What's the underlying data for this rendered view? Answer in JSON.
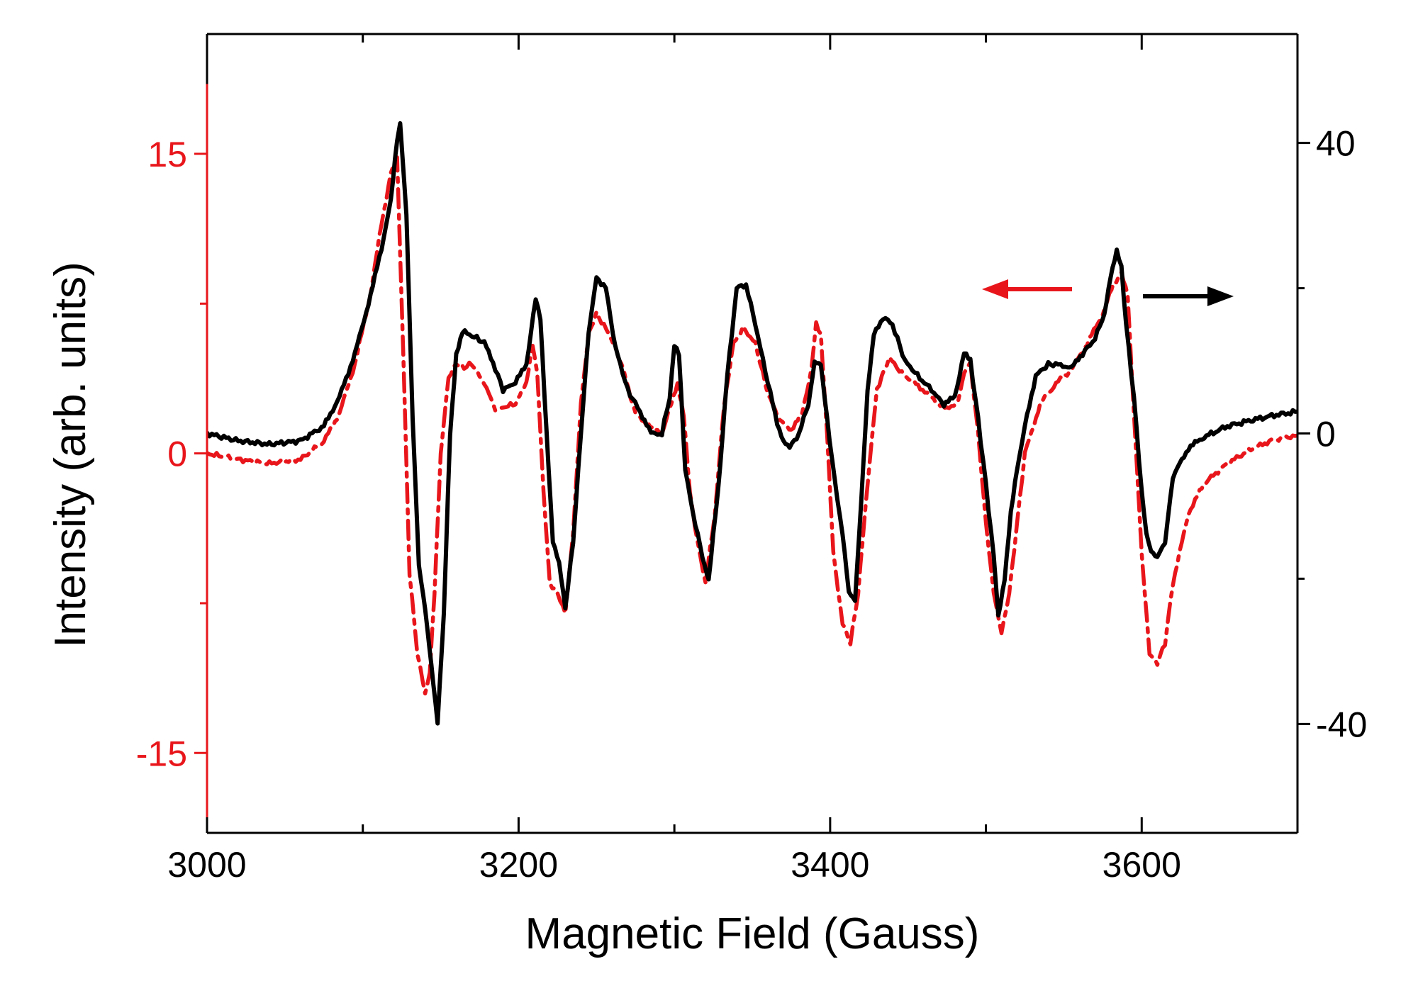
{
  "chart_data": {
    "type": "line",
    "title": "",
    "xlabel": "Magnetic Field (Gauss)",
    "ylabel": "Intensity (arb. units)",
    "xlim": [
      3000,
      3700
    ],
    "x_ticks": [
      3000,
      3200,
      3400,
      3600
    ],
    "x_minor_ticks": [
      3100,
      3300,
      3500
    ],
    "y_left": {
      "lim": [
        -19,
        21
      ],
      "ticks": [
        -15,
        0,
        15
      ],
      "minor_ticks": [
        -7.5,
        7.5
      ],
      "tick_labels": [
        "-15",
        "0",
        "15"
      ],
      "color": "#e8161b"
    },
    "y_right": {
      "lim": [
        -55,
        55
      ],
      "ticks": [
        -40,
        0,
        40
      ],
      "minor_ticks": [
        -20,
        20
      ],
      "tick_labels": [
        "-40",
        "0",
        "40"
      ],
      "color": "#000000"
    },
    "grid": false,
    "series": [
      {
        "name": "red dash-dot (left axis)",
        "axis": "left",
        "color": "#e8161b",
        "style": "dashdot",
        "x": [
          3000,
          3020,
          3040,
          3060,
          3075,
          3085,
          3095,
          3105,
          3112,
          3118,
          3122,
          3126,
          3130,
          3135,
          3140,
          3143,
          3146,
          3150,
          3155,
          3160,
          3165,
          3170,
          3178,
          3185,
          3190,
          3198,
          3205,
          3209,
          3212,
          3216,
          3220,
          3225,
          3230,
          3235,
          3240,
          3245,
          3250,
          3258,
          3266,
          3275,
          3285,
          3292,
          3298,
          3302,
          3306,
          3310,
          3315,
          3320,
          3326,
          3332,
          3338,
          3344,
          3352,
          3360,
          3368,
          3375,
          3382,
          3388,
          3391,
          3394,
          3398,
          3402,
          3408,
          3413,
          3418,
          3424,
          3430,
          3438,
          3446,
          3455,
          3465,
          3475,
          3482,
          3486,
          3490,
          3495,
          3500,
          3505,
          3510,
          3515,
          3520,
          3525,
          3535,
          3545,
          3555,
          3565,
          3575,
          3582,
          3587,
          3591,
          3595,
          3600,
          3605,
          3610,
          3615,
          3620,
          3630,
          3640,
          3655,
          3670,
          3685,
          3700
        ],
        "y": [
          0,
          -0.3,
          -0.5,
          -0.3,
          0.6,
          2.0,
          4.5,
          8.0,
          11.5,
          14.0,
          14.8,
          5.0,
          -6.0,
          -10.0,
          -12.0,
          -11.0,
          -7.0,
          0.0,
          3.8,
          4.5,
          4.3,
          4.5,
          3.5,
          2.2,
          2.3,
          2.5,
          3.5,
          5.5,
          4.0,
          -2.0,
          -6.5,
          -7.0,
          -8.0,
          -4.0,
          2.5,
          6.0,
          7.0,
          6.0,
          4.5,
          2.0,
          1.3,
          1.0,
          2.5,
          3.5,
          2.0,
          -2.0,
          -4.5,
          -6.5,
          -3.0,
          2.5,
          5.5,
          6.3,
          5.5,
          3.0,
          1.6,
          1.2,
          2.0,
          4.2,
          6.5,
          6.0,
          1.0,
          -5.0,
          -8.5,
          -9.5,
          -7.0,
          -1.5,
          3.2,
          4.8,
          4.0,
          3.5,
          2.8,
          2.2,
          2.6,
          4.0,
          4.5,
          1.0,
          -3.5,
          -7.0,
          -9.0,
          -7.0,
          -3.5,
          0.0,
          2.5,
          3.5,
          4.2,
          5.5,
          7.0,
          8.5,
          9.0,
          8.0,
          2.0,
          -5.0,
          -10.0,
          -10.5,
          -9.5,
          -6.5,
          -3.0,
          -1.5,
          -0.5,
          0.2,
          0.7,
          0.9
        ]
      },
      {
        "name": "black solid (right axis)",
        "axis": "right",
        "color": "#000000",
        "style": "solid",
        "x": [
          3000,
          3020,
          3040,
          3060,
          3075,
          3085,
          3095,
          3105,
          3112,
          3118,
          3122,
          3124,
          3128,
          3132,
          3136,
          3140,
          3144,
          3148,
          3152,
          3156,
          3160,
          3164,
          3170,
          3178,
          3185,
          3190,
          3198,
          3205,
          3208,
          3211,
          3214,
          3218,
          3222,
          3226,
          3230,
          3235,
          3240,
          3245,
          3250,
          3256,
          3262,
          3270,
          3278,
          3285,
          3292,
          3297,
          3300,
          3303,
          3307,
          3312,
          3318,
          3322,
          3328,
          3334,
          3340,
          3346,
          3352,
          3360,
          3366,
          3370,
          3374,
          3380,
          3386,
          3390,
          3394,
          3398,
          3403,
          3408,
          3412,
          3416,
          3420,
          3424,
          3428,
          3434,
          3440,
          3448,
          3456,
          3465,
          3473,
          3480,
          3486,
          3490,
          3495,
          3500,
          3505,
          3508,
          3512,
          3516,
          3520,
          3525,
          3532,
          3540,
          3548,
          3555,
          3562,
          3570,
          3576,
          3580,
          3584,
          3587,
          3590,
          3595,
          3600,
          3603,
          3606,
          3610,
          3615,
          3620,
          3630,
          3640,
          3655,
          3670,
          3685,
          3700
        ],
        "y": [
          0,
          -1.0,
          -1.5,
          -1.0,
          1.0,
          5.0,
          11.0,
          19.0,
          25.5,
          32.0,
          40.5,
          42.5,
          30.0,
          2.0,
          -18.0,
          -24.0,
          -32.0,
          -40.0,
          -25.0,
          0.0,
          11.0,
          14.0,
          13.5,
          12.5,
          9.0,
          6.0,
          7.0,
          9.5,
          14.0,
          18.5,
          16.0,
          0.0,
          -15.0,
          -18.0,
          -24.0,
          -15.0,
          0.0,
          14.0,
          21.5,
          20.0,
          12.0,
          6.0,
          3.0,
          0.0,
          0.0,
          5.0,
          12.0,
          11.0,
          -5.0,
          -11.0,
          -17.0,
          -20.0,
          -8.0,
          8.0,
          20.0,
          20.5,
          15.0,
          7.0,
          1.5,
          -1.0,
          -2.0,
          0.0,
          4.0,
          10.0,
          9.5,
          2.0,
          -6.5,
          -14.0,
          -22.0,
          -23.0,
          -9.0,
          6.0,
          13.5,
          16.0,
          15.0,
          10.0,
          8.0,
          6.0,
          4.0,
          5.0,
          11.0,
          10.0,
          2.0,
          -7.0,
          -17.0,
          -25.0,
          -20.0,
          -11.0,
          -5.0,
          1.0,
          8.0,
          9.5,
          9.5,
          9.0,
          11.0,
          13.0,
          16.5,
          21.5,
          25.0,
          23.0,
          15.0,
          5.0,
          -8.0,
          -14.0,
          -16.0,
          -17.0,
          -15.0,
          -6.0,
          -2.0,
          -0.5,
          1.0,
          1.8,
          2.5,
          3.0
        ]
      }
    ],
    "annotations": [
      {
        "type": "arrow",
        "direction": "left",
        "color": "#e8161b",
        "points_to": "left axis"
      },
      {
        "type": "arrow",
        "direction": "right",
        "color": "#000000",
        "points_to": "right axis"
      }
    ]
  }
}
